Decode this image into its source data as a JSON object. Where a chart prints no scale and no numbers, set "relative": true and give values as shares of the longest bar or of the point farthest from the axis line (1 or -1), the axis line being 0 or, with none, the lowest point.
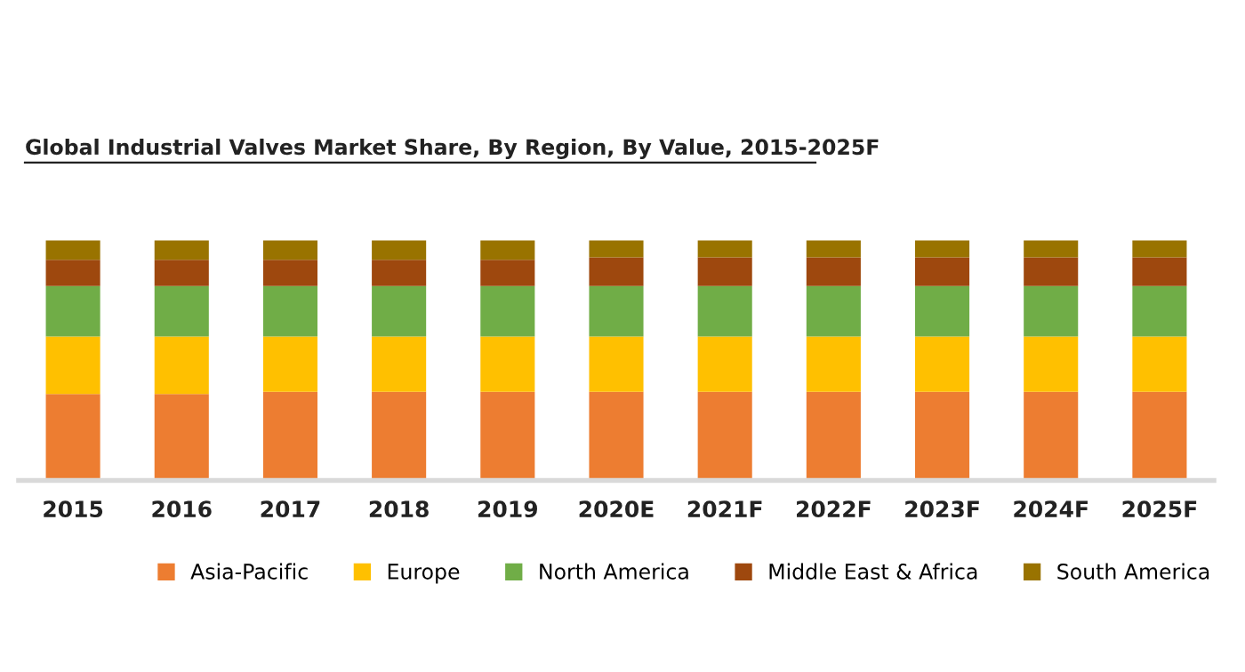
{
  "chart_data": {
    "type": "bar",
    "stacked": true,
    "relative": true,
    "title": "Global Industrial Valves Market Share, By Region, By Value, 2015-2025F",
    "categories": [
      "2015",
      "2016",
      "2017",
      "2018",
      "2019",
      "2020E",
      "2021F",
      "2022F",
      "2023F",
      "2024F",
      "2025F"
    ],
    "series": [
      {
        "name": "Asia-Pacific",
        "color": "#ed7d31",
        "values": [
          0.36,
          0.36,
          0.37,
          0.37,
          0.37,
          0.37,
          0.37,
          0.37,
          0.37,
          0.37,
          0.37
        ]
      },
      {
        "name": "Europe",
        "color": "#ffc000",
        "values": [
          0.24,
          0.24,
          0.23,
          0.23,
          0.23,
          0.23,
          0.23,
          0.23,
          0.23,
          0.23,
          0.23
        ]
      },
      {
        "name": "North America",
        "color": "#70ad47",
        "values": [
          0.21,
          0.21,
          0.21,
          0.21,
          0.21,
          0.21,
          0.21,
          0.21,
          0.21,
          0.21,
          0.21
        ]
      },
      {
        "name": "Middle East & Africa",
        "color": "#9e480e",
        "values": [
          0.11,
          0.11,
          0.11,
          0.11,
          0.11,
          0.12,
          0.12,
          0.12,
          0.12,
          0.12,
          0.12
        ]
      },
      {
        "name": "South America",
        "color": "#997300",
        "values": [
          0.08,
          0.08,
          0.08,
          0.08,
          0.08,
          0.07,
          0.07,
          0.07,
          0.07,
          0.07,
          0.07
        ]
      }
    ],
    "legend": "bottom",
    "grid": false
  }
}
